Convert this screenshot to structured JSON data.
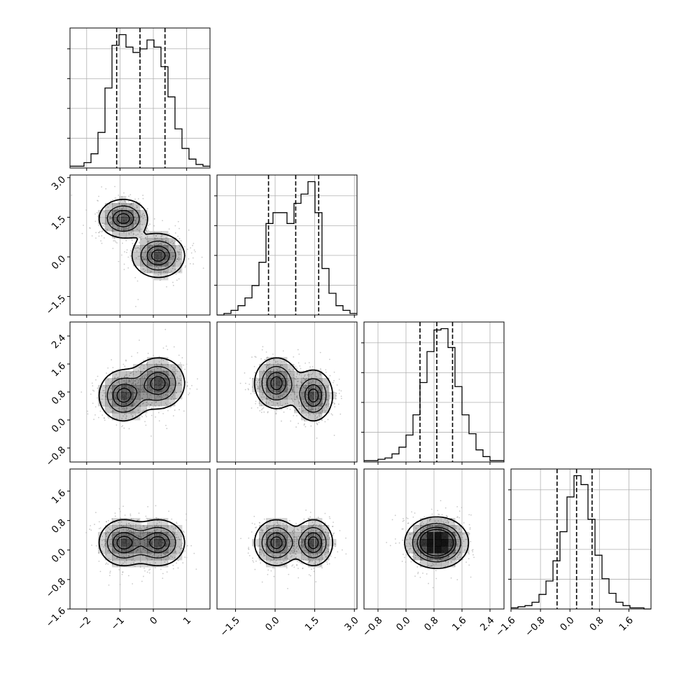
{
  "chart_data": {
    "type": "corner",
    "title": "",
    "grid": true,
    "parameters": [
      {
        "name": "p0",
        "label": "",
        "range": [
          -2.5,
          1.7
        ],
        "ticks": [
          "−2",
          "−1",
          "0",
          "1"
        ],
        "tick_values": [
          -2,
          -1,
          0,
          1
        ],
        "quantiles": [
          -1.1,
          -0.4,
          0.35
        ]
      },
      {
        "name": "p1",
        "label": "",
        "range": [
          -2.2,
          3.1
        ],
        "ticks": [
          "−1.5",
          "0.0",
          "1.5",
          "3.0"
        ],
        "tick_values": [
          -1.5,
          0.0,
          1.5,
          3.0
        ],
        "quantiles": [
          -0.25,
          0.78,
          1.65
        ]
      },
      {
        "name": "p2",
        "label": "",
        "range": [
          -1.2,
          2.8
        ],
        "ticks": [
          "−0.8",
          "0.0",
          "0.8",
          "1.6",
          "2.4"
        ],
        "tick_values": [
          -0.8,
          0.0,
          0.8,
          1.6,
          2.4
        ],
        "quantiles": [
          0.4,
          0.88,
          1.33
        ]
      },
      {
        "name": "p3",
        "label": "",
        "range": [
          -1.6,
          2.2
        ],
        "ticks": [
          "−1.6",
          "−0.8",
          "0.0",
          "0.8",
          "1.6"
        ],
        "tick_values": [
          -1.6,
          -0.8,
          0.0,
          0.8,
          1.6
        ],
        "quantiles": [
          -0.35,
          0.18,
          0.6
        ]
      }
    ],
    "histograms": [
      {
        "param": "p0",
        "counts": [
          1,
          1,
          3,
          8,
          20,
          45,
          69,
          75,
          68,
          65,
          67,
          72,
          68,
          57,
          40,
          22,
          11,
          5,
          2,
          1
        ]
      },
      {
        "param": "p1",
        "counts": [
          0,
          1,
          3,
          6,
          11,
          19,
          34,
          59,
          66,
          66,
          59,
          72,
          78,
          86,
          66,
          30,
          14,
          6,
          3,
          1
        ]
      },
      {
        "param": "p2",
        "counts": [
          1,
          1,
          2,
          3,
          6,
          11,
          20,
          35,
          59,
          82,
          98,
          99,
          85,
          56,
          35,
          21,
          9,
          4,
          1,
          1
        ]
      },
      {
        "param": "p3",
        "counts": [
          1,
          2,
          3,
          6,
          13,
          25,
          43,
          69,
          100,
          119,
          111,
          80,
          48,
          27,
          14,
          6,
          3,
          1,
          1,
          0
        ]
      }
    ],
    "density_components": [
      {
        "mean": [
          -0.9,
          1.45,
          0.7,
          0.2
        ],
        "sd": [
          0.35,
          0.35,
          0.35,
          0.3
        ],
        "weight": 0.5
      },
      {
        "mean": [
          0.15,
          0.05,
          1.05,
          0.2
        ],
        "sd": [
          0.38,
          0.4,
          0.35,
          0.3
        ],
        "weight": 0.5
      }
    ],
    "contour_levels": [
      0.118,
      0.393,
      0.675,
      0.865
    ],
    "colors": {
      "lines": "#000000",
      "scatter": "#8a8a8a",
      "density": "#000000",
      "grid": "#b0b0b0"
    }
  }
}
